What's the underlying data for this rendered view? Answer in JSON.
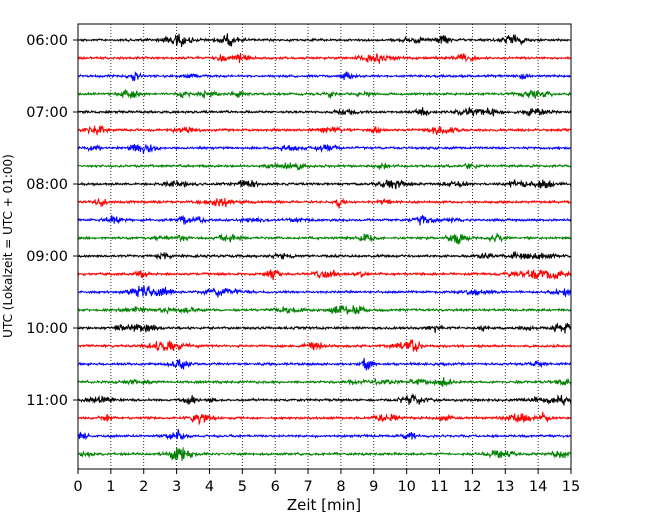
{
  "chart_data": {
    "type": "line",
    "title": "",
    "xlabel": "Zeit  [min]",
    "ylabel": "UTC (Lokalzeit = UTC + 01:00)",
    "xlim": [
      0,
      15
    ],
    "x_ticks": [
      "0",
      "1",
      "2",
      "3",
      "4",
      "5",
      "6",
      "7",
      "8",
      "9",
      "10",
      "11",
      "12",
      "13",
      "14",
      "15"
    ],
    "y_tick_labels": [
      "06:00",
      "07:00",
      "08:00",
      "09:00",
      "10:00",
      "11:00"
    ],
    "row_start": "06:00",
    "row_interval_minutes": 15,
    "grid": {
      "vertical_dotted": true,
      "horizontal": false
    },
    "trace_colors": [
      "#000000",
      "#ff0000",
      "#0000ff",
      "#008000"
    ],
    "series": [
      {
        "start": "06:00",
        "color": "#000000"
      },
      {
        "start": "06:15",
        "color": "#ff0000"
      },
      {
        "start": "06:30",
        "color": "#0000ff"
      },
      {
        "start": "06:45",
        "color": "#008000"
      },
      {
        "start": "07:00",
        "color": "#000000"
      },
      {
        "start": "07:15",
        "color": "#ff0000"
      },
      {
        "start": "07:30",
        "color": "#0000ff"
      },
      {
        "start": "07:45",
        "color": "#008000"
      },
      {
        "start": "08:00",
        "color": "#000000"
      },
      {
        "start": "08:15",
        "color": "#ff0000"
      },
      {
        "start": "08:30",
        "color": "#0000ff"
      },
      {
        "start": "08:45",
        "color": "#008000"
      },
      {
        "start": "09:00",
        "color": "#000000"
      },
      {
        "start": "09:15",
        "color": "#ff0000"
      },
      {
        "start": "09:30",
        "color": "#0000ff"
      },
      {
        "start": "09:45",
        "color": "#008000"
      },
      {
        "start": "10:00",
        "color": "#000000"
      },
      {
        "start": "10:15",
        "color": "#ff0000"
      },
      {
        "start": "10:30",
        "color": "#0000ff"
      },
      {
        "start": "10:45",
        "color": "#008000"
      },
      {
        "start": "11:00",
        "color": "#000000"
      },
      {
        "start": "11:15",
        "color": "#ff0000"
      },
      {
        "start": "11:30",
        "color": "#0000ff"
      },
      {
        "start": "11:45",
        "color": "#008000"
      }
    ]
  }
}
